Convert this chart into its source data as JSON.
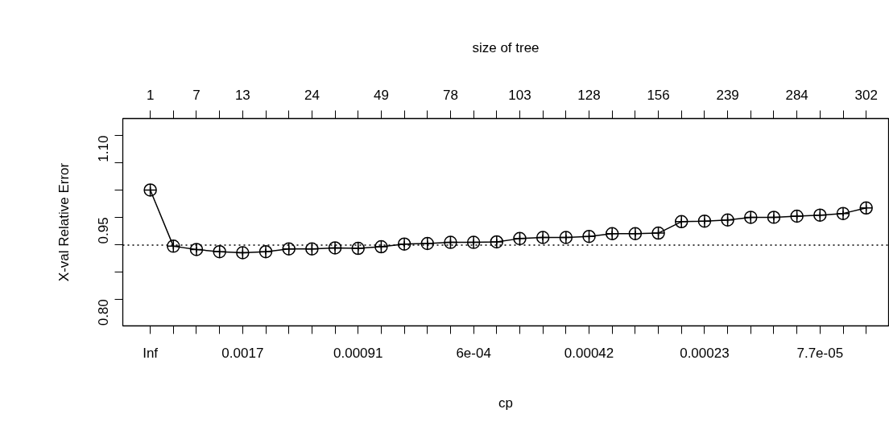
{
  "chart_data": {
    "type": "line",
    "xlabel": "cp",
    "ylabel": "X-val Relative Error",
    "x2label": "size of tree",
    "categories": [
      "Inf",
      null,
      null,
      null,
      "0.0017",
      null,
      null,
      null,
      null,
      "0.00091",
      null,
      null,
      null,
      null,
      "6e-04",
      null,
      null,
      null,
      null,
      "0.00042",
      null,
      null,
      null,
      null,
      "0.00023",
      null,
      null,
      null,
      null,
      "7.7e-05",
      null,
      null
    ],
    "annotations": [
      "1",
      "7",
      "13",
      "24",
      "49",
      "78",
      "103",
      "128",
      "156",
      "239",
      "284",
      "302"
    ],
    "series": [
      {
        "color": "#000000",
        "values": [
          1.0,
          0.897,
          0.891,
          0.887,
          0.885,
          0.887,
          0.892,
          0.892,
          0.894,
          0.893,
          0.896,
          0.901,
          0.902,
          0.904,
          0.904,
          0.905,
          0.911,
          0.913,
          0.913,
          0.915,
          0.92,
          0.92,
          0.921,
          0.942,
          0.943,
          0.945,
          0.95,
          0.95,
          0.952,
          0.954,
          0.957,
          0.967
        ],
        "errors": [
          0.005,
          0.005,
          0.005,
          0.005,
          0.005,
          0.005,
          0.005,
          0.005,
          0.005,
          0.005,
          0.005,
          0.005,
          0.005,
          0.005,
          0.005,
          0.005,
          0.005,
          0.005,
          0.005,
          0.005,
          0.005,
          0.005,
          0.005,
          0.005,
          0.005,
          0.005,
          0.005,
          0.005,
          0.005,
          0.005,
          0.005,
          0.005
        ]
      }
    ],
    "marker": "circle",
    "line_style": "solid",
    "grid": false,
    "ylim": [
      0.751,
      1.131
    ],
    "yticks": [
      {
        "value": 0.8,
        "label": "0.80"
      },
      {
        "value": 0.85,
        "label": null
      },
      {
        "value": 0.9,
        "label": null
      },
      {
        "value": 0.95,
        "label": "0.95"
      },
      {
        "value": 1.0,
        "label": null
      },
      {
        "value": 1.05,
        "label": null
      },
      {
        "value": 1.1,
        "label": "1.10"
      }
    ],
    "ref_lines": [
      {
        "axis": "y",
        "value": 0.899,
        "line_style": "dotted"
      }
    ]
  }
}
